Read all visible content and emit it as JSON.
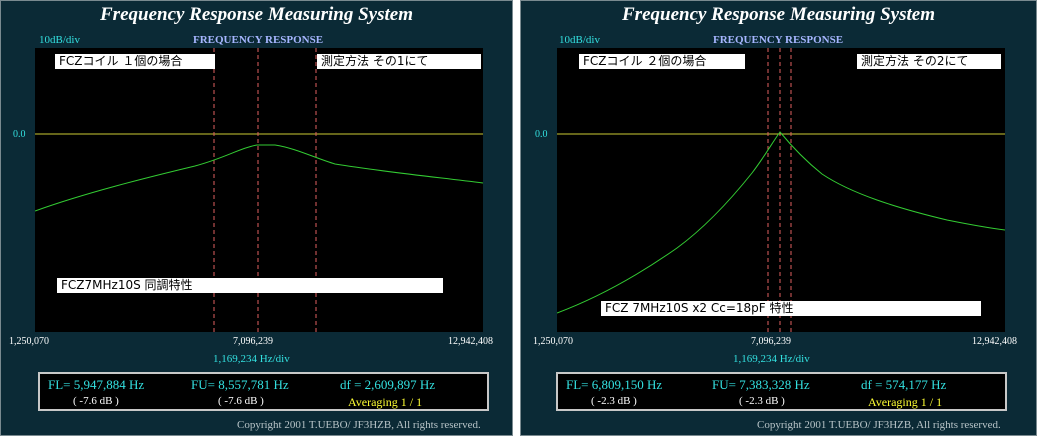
{
  "panels": [
    {
      "title": "Frequency Response Measuring System",
      "scale": "10dB/div",
      "response_label": "FREQUENCY RESPONSE",
      "zero_label": "0.0",
      "label_top_left": "FCZコイル １個の場合",
      "label_top_right": "測定方法 その1にて",
      "label_bottom": "FCZ7MHz10S 同調特性",
      "freq_start": "1,250,070",
      "freq_center": "7,096,239",
      "freq_end": "12,942,408",
      "hz_div": "1,169,234  Hz/div",
      "fl": "FL= 5,947,884  Hz",
      "fl_db": "( -7.6 dB )",
      "fu": "FU= 8,557,781  Hz",
      "fu_db": "( -7.6 dB )",
      "df": "df = 2,609,897  Hz",
      "averaging": "Averaging   1 / 1",
      "copyright": "Copyright 2001 T.UEBO/ JF3HZB, All rights reserved."
    },
    {
      "title": "Frequency Response Measuring System",
      "scale": "10dB/div",
      "response_label": "FREQUENCY RESPONSE",
      "zero_label": "0.0",
      "label_top_left": "FCZコイル ２個の場合",
      "label_top_right": "測定方法 その2にて",
      "label_bottom": "FCZ 7MHz10S x2 Cc=18pF 特性",
      "freq_start": "1,250,070",
      "freq_center": "7,096,239",
      "freq_end": "12,942,408",
      "hz_div": "1,169,234  Hz/div",
      "fl": "FL= 6,809,150  Hz",
      "fl_db": "( -2.3 dB )",
      "fu": "FU= 7,383,328  Hz",
      "fu_db": "( -2.3 dB )",
      "df": "df = 574,177  Hz",
      "averaging": "Averaging   1 / 1",
      "copyright": "Copyright 2001 T.UEBO/ JF3HZB, All rights reserved."
    }
  ],
  "colors": {
    "trace": "#33cc33",
    "reference": "#cccc33",
    "marker": "#e06060",
    "background": "#0b2a36"
  }
}
